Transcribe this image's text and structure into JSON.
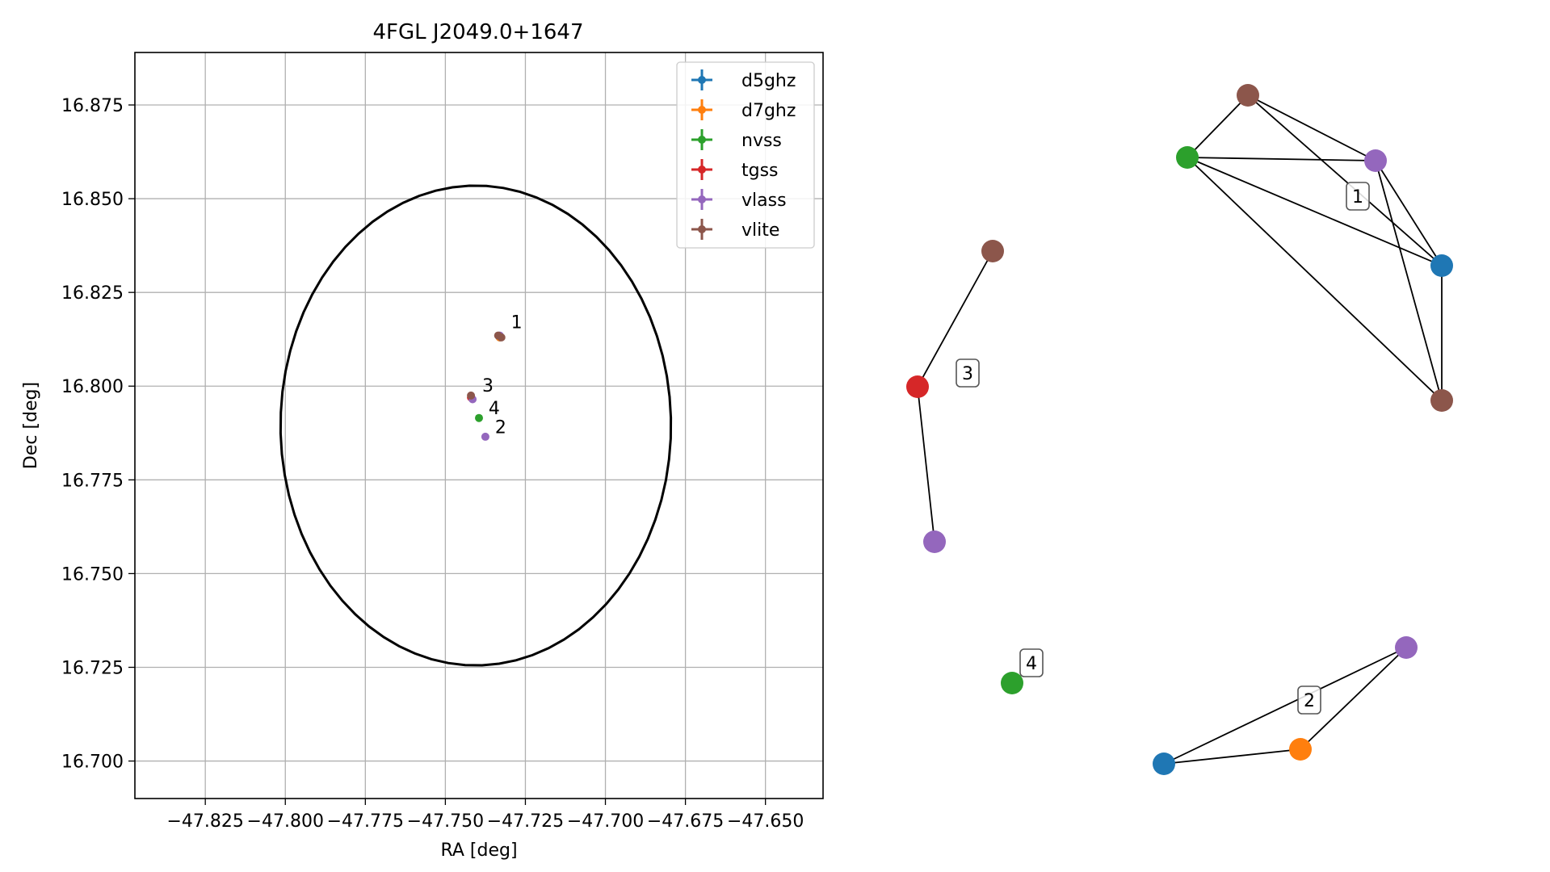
{
  "chart_data": [
    {
      "type": "scatter",
      "title": "4FGL J2049.0+1647",
      "xlabel": "RA [deg]",
      "ylabel": "Dec [deg]",
      "xlim": [
        -47.847,
        -47.632
      ],
      "ylim": [
        16.69,
        16.889
      ],
      "grid": true,
      "xticks": [
        -47.825,
        -47.8,
        -47.775,
        -47.75,
        -47.725,
        -47.7,
        -47.675,
        -47.65
      ],
      "xtick_labels": [
        "−47.825",
        "−47.800",
        "−47.775",
        "−47.750",
        "−47.725",
        "−47.700",
        "−47.675",
        "−47.650"
      ],
      "yticks": [
        16.7,
        16.725,
        16.75,
        16.775,
        16.8,
        16.825,
        16.85,
        16.875
      ],
      "ytick_labels": [
        "16.700",
        "16.725",
        "16.750",
        "16.775",
        "16.800",
        "16.825",
        "16.850",
        "16.875"
      ],
      "legend_position": "top-right",
      "series": [
        {
          "name": "d5ghz",
          "color": "#1f77b4",
          "points": [
            [
              -47.733,
              16.813
            ]
          ]
        },
        {
          "name": "d7ghz",
          "color": "#ff7f0e",
          "points": [
            [
              -47.733,
              16.813
            ]
          ]
        },
        {
          "name": "nvss",
          "color": "#2ca02c",
          "points": [
            [
              -47.7395,
              16.7915
            ]
          ]
        },
        {
          "name": "tgss",
          "color": "#d62728",
          "points": [
            [
              -47.742,
              16.797
            ]
          ]
        },
        {
          "name": "vlass",
          "color": "#9467bd",
          "points": [
            [
              -47.7375,
              16.7865
            ],
            [
              -47.7415,
              16.7965
            ],
            [
              -47.733,
              16.8135
            ]
          ]
        },
        {
          "name": "vlite",
          "color": "#8c564b",
          "points": [
            [
              -47.7325,
              16.813
            ],
            [
              -47.742,
              16.7975
            ],
            [
              -47.7335,
              16.8135
            ]
          ]
        }
      ],
      "annotations": [
        {
          "text": "1",
          "x": -47.7295,
          "y": 16.8155
        },
        {
          "text": "2",
          "x": -47.7345,
          "y": 16.7875
        },
        {
          "text": "3",
          "x": -47.7385,
          "y": 16.7985
        },
        {
          "text": "4",
          "x": -47.7365,
          "y": 16.7925
        }
      ],
      "ellipse": {
        "center": [
          -47.7405,
          16.7895
        ],
        "ra_semi_axis": 0.061,
        "dec_semi_axis": 0.064,
        "color": "#000000"
      }
    },
    {
      "type": "network",
      "clusters": [
        {
          "label": "1"
        },
        {
          "label": "2"
        },
        {
          "label": "3"
        },
        {
          "label": "4"
        }
      ],
      "nodes": [
        {
          "id": "c1_vlite_a",
          "survey": "vlite",
          "color": "#8c564b"
        },
        {
          "id": "c1_nvss",
          "survey": "nvss",
          "color": "#2ca02c"
        },
        {
          "id": "c1_vlass",
          "survey": "vlass",
          "color": "#9467bd"
        },
        {
          "id": "c1_d5ghz",
          "survey": "d5ghz",
          "color": "#1f77b4"
        },
        {
          "id": "c1_vlite_b",
          "survey": "vlite",
          "color": "#8c564b"
        },
        {
          "id": "c3_vlite",
          "survey": "vlite",
          "color": "#8c564b"
        },
        {
          "id": "c3_tgss",
          "survey": "tgss",
          "color": "#d62728"
        },
        {
          "id": "c3_vlass",
          "survey": "vlass",
          "color": "#9467bd"
        },
        {
          "id": "c4_nvss",
          "survey": "nvss",
          "color": "#2ca02c"
        },
        {
          "id": "c2_vlass",
          "survey": "vlass",
          "color": "#9467bd"
        },
        {
          "id": "c2_d7ghz",
          "survey": "d7ghz",
          "color": "#ff7f0e"
        },
        {
          "id": "c2_d5ghz",
          "survey": "d5ghz",
          "color": "#1f77b4"
        }
      ],
      "edges": [
        [
          "c1_vlite_a",
          "c1_nvss"
        ],
        [
          "c1_vlite_a",
          "c1_vlass"
        ],
        [
          "c1_vlite_a",
          "c1_d5ghz"
        ],
        [
          "c1_nvss",
          "c1_vlass"
        ],
        [
          "c1_nvss",
          "c1_d5ghz"
        ],
        [
          "c1_nvss",
          "c1_vlite_b"
        ],
        [
          "c1_vlass",
          "c1_d5ghz"
        ],
        [
          "c1_vlass",
          "c1_vlite_b"
        ],
        [
          "c1_d5ghz",
          "c1_vlite_b"
        ],
        [
          "c3_vlite",
          "c3_tgss"
        ],
        [
          "c3_tgss",
          "c3_vlass"
        ],
        [
          "c2_vlass",
          "c2_d7ghz"
        ],
        [
          "c2_vlass",
          "c2_d5ghz"
        ],
        [
          "c2_d7ghz",
          "c2_d5ghz"
        ]
      ]
    }
  ]
}
